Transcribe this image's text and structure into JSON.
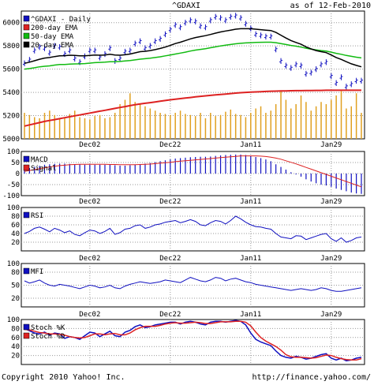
{
  "header": {
    "symbol": "^GDAXI",
    "asof": "as of 12-Feb-2010"
  },
  "footer": {
    "copyright": "Copyright 2010 Yahoo! Inc.",
    "url": "http://finance.yahoo.com/"
  },
  "colors": {
    "ema200": "#dd2222",
    "ema50": "#11bb11",
    "ema20": "#000000",
    "price": "#1010c0",
    "volume": "#e0a020",
    "macd": "#1010c0",
    "signal": "#dd2222",
    "grid": "#999999"
  },
  "x_labels": [
    "Dec02",
    "Dec22",
    "Jan11",
    "Jan29"
  ],
  "chart_data": [
    {
      "type": "line",
      "title": "^GDAXI",
      "ylim": [
        5000,
        6100
      ],
      "yticks": [
        5000,
        5200,
        5400,
        5600,
        5800,
        6000
      ],
      "legend": [
        "^GDAXI - Daily",
        "200-day EMA",
        "50-day EMA",
        "20-day EMA"
      ],
      "legend_placement": "top-left",
      "grid": true,
      "series": [
        {
          "name": "^GDAXI - Daily",
          "values": [
            5650,
            5680,
            5760,
            5790,
            5780,
            5740,
            5800,
            5790,
            5730,
            5760,
            5690,
            5660,
            5710,
            5760,
            5760,
            5700,
            5730,
            5780,
            5670,
            5690,
            5750,
            5760,
            5820,
            5840,
            5780,
            5800,
            5840,
            5860,
            5900,
            5940,
            5980,
            5960,
            6000,
            6020,
            6010,
            5970,
            5960,
            6020,
            6050,
            6040,
            6020,
            6050,
            6060,
            6040,
            5990,
            5950,
            5900,
            5890,
            5880,
            5880,
            5770,
            5670,
            5630,
            5610,
            5640,
            5630,
            5560,
            5570,
            5600,
            5640,
            5660,
            5540,
            5480,
            5530,
            5450,
            5470,
            5500,
            5500
          ]
        },
        {
          "name": "200-day EMA",
          "values": [
            5110,
            5120,
            5130,
            5140,
            5150,
            5158,
            5166,
            5174,
            5182,
            5190,
            5198,
            5206,
            5214,
            5222,
            5230,
            5238,
            5246,
            5254,
            5262,
            5270,
            5278,
            5286,
            5294,
            5300,
            5306,
            5312,
            5318,
            5324,
            5330,
            5336,
            5341,
            5346,
            5351,
            5356,
            5361,
            5366,
            5370,
            5374,
            5378,
            5382,
            5386,
            5390,
            5394,
            5397,
            5400,
            5402,
            5404,
            5406,
            5408,
            5410,
            5411,
            5412,
            5413,
            5414,
            5415,
            5415,
            5416,
            5416,
            5417,
            5417,
            5418,
            5418,
            5418,
            5418,
            5418,
            5418,
            5418,
            5418
          ]
        },
        {
          "name": "50-day EMA",
          "values": [
            5600,
            5605,
            5612,
            5620,
            5625,
            5628,
            5635,
            5640,
            5640,
            5643,
            5645,
            5646,
            5648,
            5652,
            5656,
            5658,
            5660,
            5664,
            5664,
            5666,
            5670,
            5674,
            5680,
            5686,
            5690,
            5694,
            5700,
            5706,
            5714,
            5722,
            5730,
            5738,
            5746,
            5756,
            5764,
            5770,
            5776,
            5784,
            5792,
            5800,
            5806,
            5812,
            5818,
            5822,
            5826,
            5828,
            5830,
            5831,
            5832,
            5832,
            5828,
            5820,
            5812,
            5804,
            5798,
            5790,
            5780,
            5772,
            5766,
            5760,
            5755,
            5746,
            5736,
            5728,
            5718,
            5710,
            5703,
            5697
          ]
        },
        {
          "name": "20-day EMA",
          "values": [
            5650,
            5660,
            5672,
            5685,
            5695,
            5700,
            5708,
            5715,
            5716,
            5720,
            5718,
            5714,
            5714,
            5718,
            5722,
            5720,
            5722,
            5728,
            5722,
            5720,
            5724,
            5730,
            5740,
            5750,
            5754,
            5760,
            5768,
            5778,
            5790,
            5804,
            5820,
            5832,
            5846,
            5860,
            5872,
            5880,
            5888,
            5898,
            5910,
            5920,
            5928,
            5936,
            5944,
            5948,
            5948,
            5948,
            5944,
            5940,
            5936,
            5932,
            5916,
            5892,
            5868,
            5846,
            5830,
            5814,
            5792,
            5774,
            5760,
            5750,
            5742,
            5722,
            5700,
            5684,
            5664,
            5646,
            5632,
            5620
          ]
        }
      ],
      "volume": {
        "ylim": [
          0,
          400
        ],
        "values": [
          120,
          110,
          100,
          95,
          120,
          130,
          110,
          95,
          100,
          115,
          130,
          100,
          95,
          90,
          105,
          110,
          95,
          100,
          120,
          160,
          180,
          210,
          170,
          160,
          150,
          140,
          130,
          120,
          115,
          110,
          120,
          130,
          115,
          110,
          105,
          120,
          95,
          120,
          105,
          110,
          125,
          135,
          115,
          110,
          100,
          120,
          140,
          150,
          120,
          130,
          160,
          220,
          180,
          140,
          160,
          200,
          170,
          130,
          150,
          170,
          160,
          180,
          200,
          220,
          140,
          150,
          210,
          120
        ]
      }
    },
    {
      "type": "bar",
      "title": "MACD",
      "ylim": [
        -100,
        100
      ],
      "yticks": [
        -100,
        -50,
        0,
        50,
        100
      ],
      "legend": [
        "MACD",
        "Signal"
      ],
      "legend_placement": "top-left",
      "grid": true,
      "series": [
        {
          "name": "MACD",
          "values": [
            20,
            25,
            30,
            35,
            40,
            42,
            44,
            45,
            45,
            44,
            43,
            42,
            40,
            40,
            40,
            40,
            40,
            40,
            38,
            36,
            36,
            38,
            40,
            42,
            45,
            48,
            52,
            56,
            60,
            64,
            68,
            70,
            72,
            74,
            75,
            76,
            76,
            77,
            80,
            82,
            84,
            85,
            86,
            86,
            84,
            80,
            75,
            70,
            64,
            56,
            42,
            30,
            18,
            6,
            -4,
            -14,
            -26,
            -36,
            -44,
            -50,
            -54,
            -60,
            -68,
            -74,
            -80,
            -86,
            -90,
            -92
          ]
        },
        {
          "name": "Signal",
          "values": [
            10,
            14,
            18,
            22,
            26,
            30,
            33,
            36,
            38,
            40,
            41,
            42,
            42,
            42,
            42,
            42,
            42,
            41,
            41,
            40,
            40,
            40,
            40,
            41,
            42,
            43,
            45,
            47,
            49,
            51,
            54,
            56,
            58,
            60,
            62,
            64,
            66,
            68,
            70,
            72,
            74,
            76,
            78,
            80,
            80,
            80,
            80,
            79,
            77,
            74,
            70,
            65,
            58,
            51,
            44,
            36,
            28,
            20,
            12,
            4,
            -4,
            -12,
            -20,
            -28,
            -36,
            -44,
            -52,
            -60
          ]
        }
      ]
    },
    {
      "type": "line",
      "title": "RSI",
      "ylim": [
        0,
        100
      ],
      "yticks": [
        20,
        40,
        60,
        80,
        100
      ],
      "legend": [
        "RSI"
      ],
      "legend_placement": "top-left",
      "grid": true,
      "series": [
        {
          "name": "RSI",
          "values": [
            40,
            45,
            52,
            55,
            50,
            44,
            52,
            48,
            42,
            46,
            38,
            35,
            42,
            48,
            46,
            40,
            45,
            52,
            38,
            42,
            50,
            52,
            58,
            60,
            52,
            55,
            60,
            62,
            66,
            68,
            70,
            65,
            68,
            72,
            68,
            60,
            58,
            65,
            70,
            68,
            62,
            70,
            80,
            74,
            66,
            60,
            56,
            55,
            52,
            50,
            40,
            32,
            30,
            28,
            35,
            34,
            26,
            30,
            34,
            38,
            40,
            28,
            22,
            30,
            20,
            24,
            30,
            32
          ]
        }
      ]
    },
    {
      "type": "line",
      "title": "MFI",
      "ylim": [
        0,
        100
      ],
      "yticks": [
        20,
        50,
        80,
        100
      ],
      "legend": [
        "MFI"
      ],
      "legend_placement": "top-left",
      "grid": true,
      "series": [
        {
          "name": "MFI",
          "values": [
            60,
            55,
            58,
            62,
            55,
            50,
            48,
            52,
            50,
            48,
            45,
            42,
            46,
            50,
            48,
            44,
            46,
            50,
            44,
            42,
            48,
            52,
            55,
            58,
            56,
            54,
            56,
            58,
            62,
            60,
            58,
            56,
            62,
            68,
            64,
            60,
            58,
            62,
            68,
            66,
            60,
            64,
            66,
            62,
            58,
            56,
            52,
            50,
            48,
            46,
            44,
            42,
            40,
            38,
            40,
            42,
            40,
            38,
            40,
            44,
            42,
            38,
            36,
            36,
            38,
            40,
            42,
            44
          ]
        }
      ]
    },
    {
      "type": "line",
      "title": "Stoch",
      "ylim": [
        0,
        100
      ],
      "yticks": [
        20,
        40,
        60,
        80,
        100
      ],
      "legend": [
        "Stoch %K",
        "Stoch %D"
      ],
      "legend_placement": "top-left",
      "grid": true,
      "series": [
        {
          "name": "Stoch %K",
          "values": [
            80,
            75,
            70,
            68,
            72,
            65,
            70,
            68,
            58,
            62,
            60,
            56,
            64,
            72,
            70,
            62,
            68,
            74,
            64,
            62,
            72,
            76,
            84,
            88,
            82,
            84,
            88,
            90,
            92,
            94,
            94,
            90,
            94,
            96,
            94,
            90,
            88,
            94,
            96,
            96,
            94,
            96,
            98,
            96,
            88,
            70,
            56,
            50,
            46,
            42,
            30,
            20,
            16,
            14,
            18,
            16,
            12,
            14,
            18,
            22,
            24,
            14,
            10,
            14,
            8,
            10,
            14,
            16
          ]
        },
        {
          "name": "Stoch %D",
          "values": [
            78,
            77,
            74,
            71,
            70,
            68,
            68,
            67,
            65,
            62,
            60,
            59,
            60,
            64,
            68,
            68,
            66,
            68,
            69,
            66,
            66,
            70,
            77,
            82,
            85,
            85,
            85,
            87,
            90,
            92,
            93,
            92,
            92,
            93,
            94,
            93,
            91,
            91,
            93,
            95,
            95,
            95,
            96,
            96,
            94,
            86,
            72,
            60,
            52,
            46,
            40,
            32,
            22,
            17,
            16,
            16,
            15,
            14,
            15,
            18,
            21,
            20,
            16,
            13,
            11,
            10,
            10,
            13
          ]
        }
      ]
    }
  ]
}
